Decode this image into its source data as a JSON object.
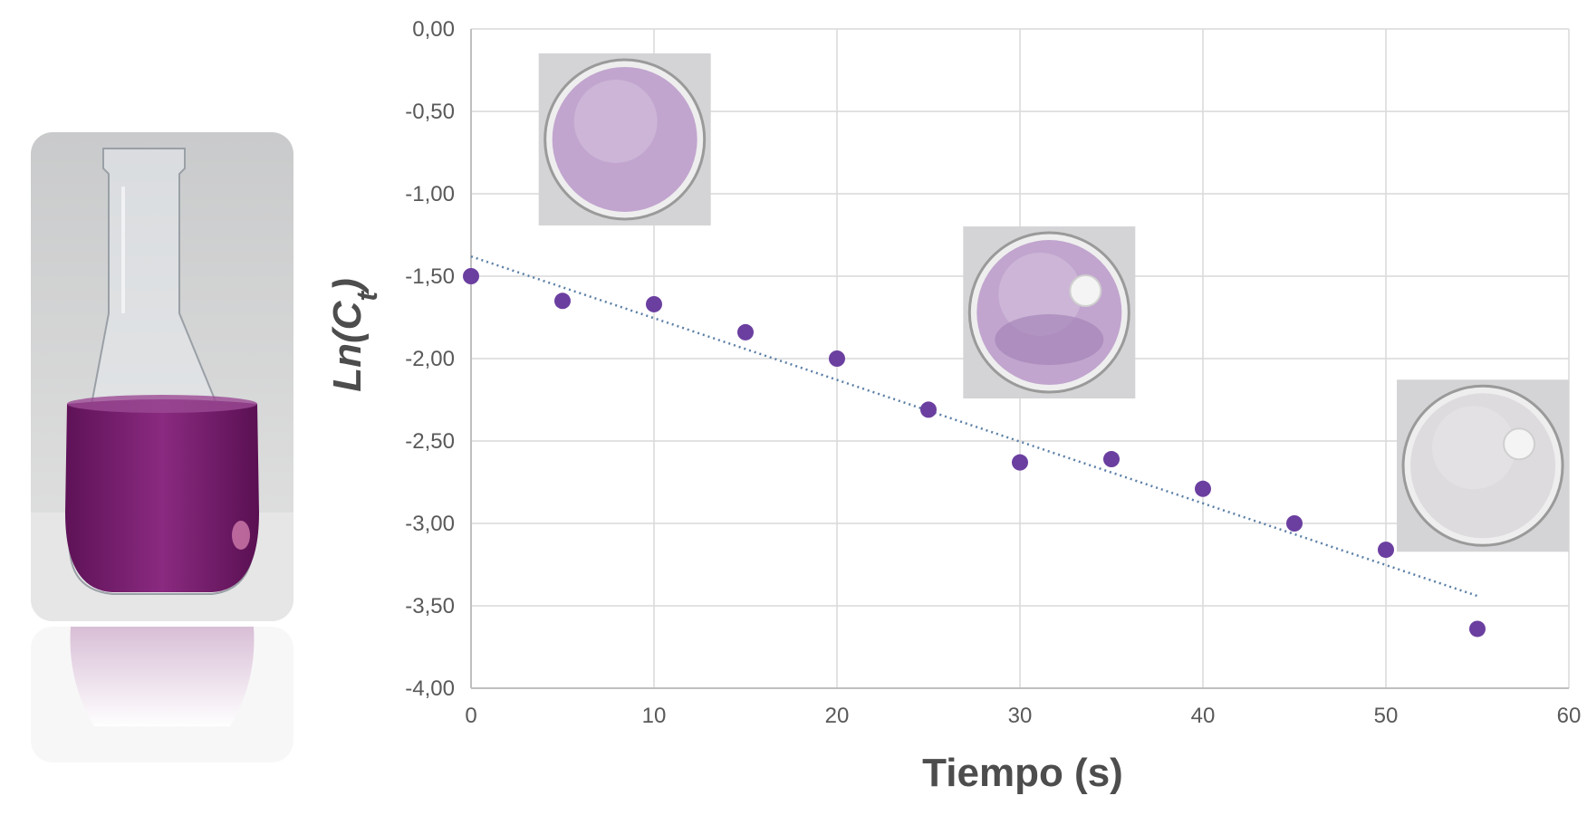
{
  "colors": {
    "marker": "#6b3fa0",
    "trendline": "#5b7fa6",
    "grid": "#d9d9d9",
    "tick_text": "#595959",
    "label_text": "#4d4d4d",
    "solution": "#7a1f72",
    "dish_purple": "#b898c8",
    "dish_clear": "#dcd8dc"
  },
  "photos": {
    "flask_icon": "erlenmeyer-flask-purple-solution",
    "dish_icons": [
      "petri-dish-purple",
      "petri-dish-partially-decolorized",
      "petri-dish-decolorized"
    ]
  },
  "chart_data": {
    "type": "scatter",
    "title": "",
    "xlabel": "Tiempo (s)",
    "ylabel": "Ln(C_t)",
    "xlim": [
      0,
      60
    ],
    "ylim": [
      -4.0,
      0.0
    ],
    "x_ticks": [
      0,
      10,
      20,
      30,
      40,
      50,
      60
    ],
    "y_ticks": [
      0.0,
      -0.5,
      -1.0,
      -1.5,
      -2.0,
      -2.5,
      -3.0,
      -3.5,
      -4.0
    ],
    "x_tick_labels": [
      "0",
      "10",
      "20",
      "30",
      "40",
      "50",
      "60"
    ],
    "y_tick_labels": [
      "0,00",
      "-0,50",
      "-1,00",
      "-1,50",
      "-2,00",
      "-2,50",
      "-3,00",
      "-3,50",
      "-4,00"
    ],
    "grid": true,
    "series": [
      {
        "x": [
          0,
          5,
          10,
          15,
          20,
          25,
          30,
          35,
          40,
          45,
          50,
          55
        ],
        "y": [
          -1.5,
          -1.65,
          -1.67,
          -1.84,
          -2.0,
          -2.31,
          -2.63,
          -2.61,
          -2.79,
          -3.0,
          -3.16,
          -3.64
        ]
      }
    ],
    "trendline": {
      "type": "linear",
      "x": [
        0,
        55
      ],
      "y": [
        -1.38,
        -3.44
      ],
      "style": "dotted"
    }
  }
}
